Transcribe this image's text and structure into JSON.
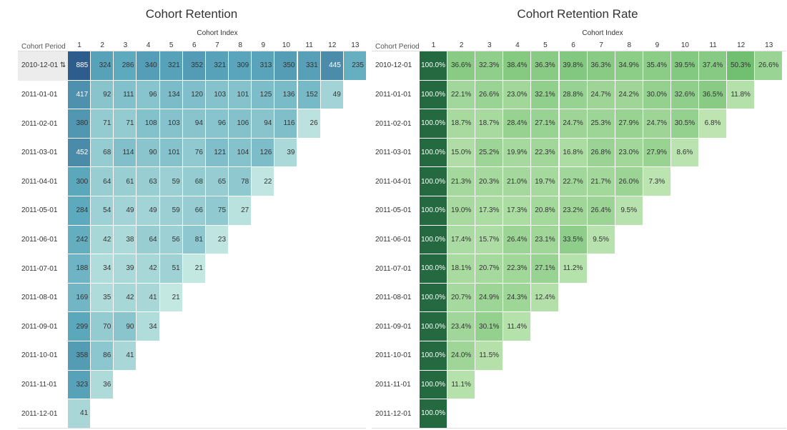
{
  "chart_data": [
    {
      "type": "heatmap",
      "title": "Cohort Retention",
      "xlabel": "Cohort Index",
      "ylabel": "Cohort Period",
      "x": [
        "1",
        "2",
        "3",
        "4",
        "5",
        "6",
        "7",
        "8",
        "9",
        "10",
        "11",
        "12",
        "13"
      ],
      "y": [
        "2010-12-01",
        "2011-01-01",
        "2011-02-01",
        "2011-03-01",
        "2011-04-01",
        "2011-05-01",
        "2011-06-01",
        "2011-07-01",
        "2011-08-01",
        "2011-09-01",
        "2011-10-01",
        "2011-11-01",
        "2011-12-01"
      ],
      "values": [
        [
          885,
          324,
          286,
          340,
          321,
          352,
          321,
          309,
          313,
          350,
          331,
          445,
          235
        ],
        [
          417,
          92,
          111,
          96,
          134,
          120,
          103,
          101,
          125,
          136,
          152,
          49
        ],
        [
          380,
          71,
          71,
          108,
          103,
          94,
          96,
          106,
          94,
          116,
          26
        ],
        [
          452,
          68,
          114,
          90,
          101,
          76,
          121,
          104,
          126,
          39
        ],
        [
          300,
          64,
          61,
          63,
          59,
          68,
          65,
          78,
          22
        ],
        [
          284,
          54,
          49,
          49,
          59,
          66,
          75,
          27
        ],
        [
          242,
          42,
          38,
          64,
          56,
          81,
          23
        ],
        [
          188,
          34,
          39,
          42,
          51,
          21
        ],
        [
          169,
          35,
          42,
          41,
          21
        ],
        [
          299,
          70,
          90,
          34
        ],
        [
          358,
          86,
          41
        ],
        [
          323,
          36
        ],
        [
          41
        ]
      ],
      "highlighted_row_suffix": "⇅",
      "color_scale": "teal"
    },
    {
      "type": "heatmap",
      "title": "Cohort Retention Rate",
      "xlabel": "Cohort Index",
      "ylabel": "Cohort Period",
      "x": [
        "1",
        "2",
        "3",
        "4",
        "5",
        "6",
        "7",
        "8",
        "9",
        "10",
        "11",
        "12",
        "13"
      ],
      "y": [
        "2010-12-01",
        "2011-01-01",
        "2011-02-01",
        "2011-03-01",
        "2011-04-01",
        "2011-05-01",
        "2011-06-01",
        "2011-07-01",
        "2011-08-01",
        "2011-09-01",
        "2011-10-01",
        "2011-11-01",
        "2011-12-01"
      ],
      "values": [
        [
          100.0,
          36.6,
          32.3,
          38.4,
          36.3,
          39.8,
          36.3,
          34.9,
          35.4,
          39.5,
          37.4,
          50.3,
          26.6
        ],
        [
          100.0,
          22.1,
          26.6,
          23.0,
          32.1,
          28.8,
          24.7,
          24.2,
          30.0,
          32.6,
          36.5,
          11.8
        ],
        [
          100.0,
          18.7,
          18.7,
          28.4,
          27.1,
          24.7,
          25.3,
          27.9,
          24.7,
          30.5,
          6.8
        ],
        [
          100.0,
          15.0,
          25.2,
          19.9,
          22.3,
          16.8,
          26.8,
          23.0,
          27.9,
          8.6
        ],
        [
          100.0,
          21.3,
          20.3,
          21.0,
          19.7,
          22.7,
          21.7,
          26.0,
          7.3
        ],
        [
          100.0,
          19.0,
          17.3,
          17.3,
          20.8,
          23.2,
          26.4,
          9.5
        ],
        [
          100.0,
          17.4,
          15.7,
          26.4,
          23.1,
          33.5,
          9.5
        ],
        [
          100.0,
          18.1,
          20.7,
          22.3,
          27.1,
          11.2
        ],
        [
          100.0,
          20.7,
          24.9,
          24.3,
          12.4
        ],
        [
          100.0,
          23.4,
          30.1,
          11.4
        ],
        [
          100.0,
          24.0,
          11.5
        ],
        [
          100.0,
          11.1
        ],
        [
          100.0
        ]
      ],
      "value_suffix": "%",
      "color_scale": "green"
    }
  ]
}
